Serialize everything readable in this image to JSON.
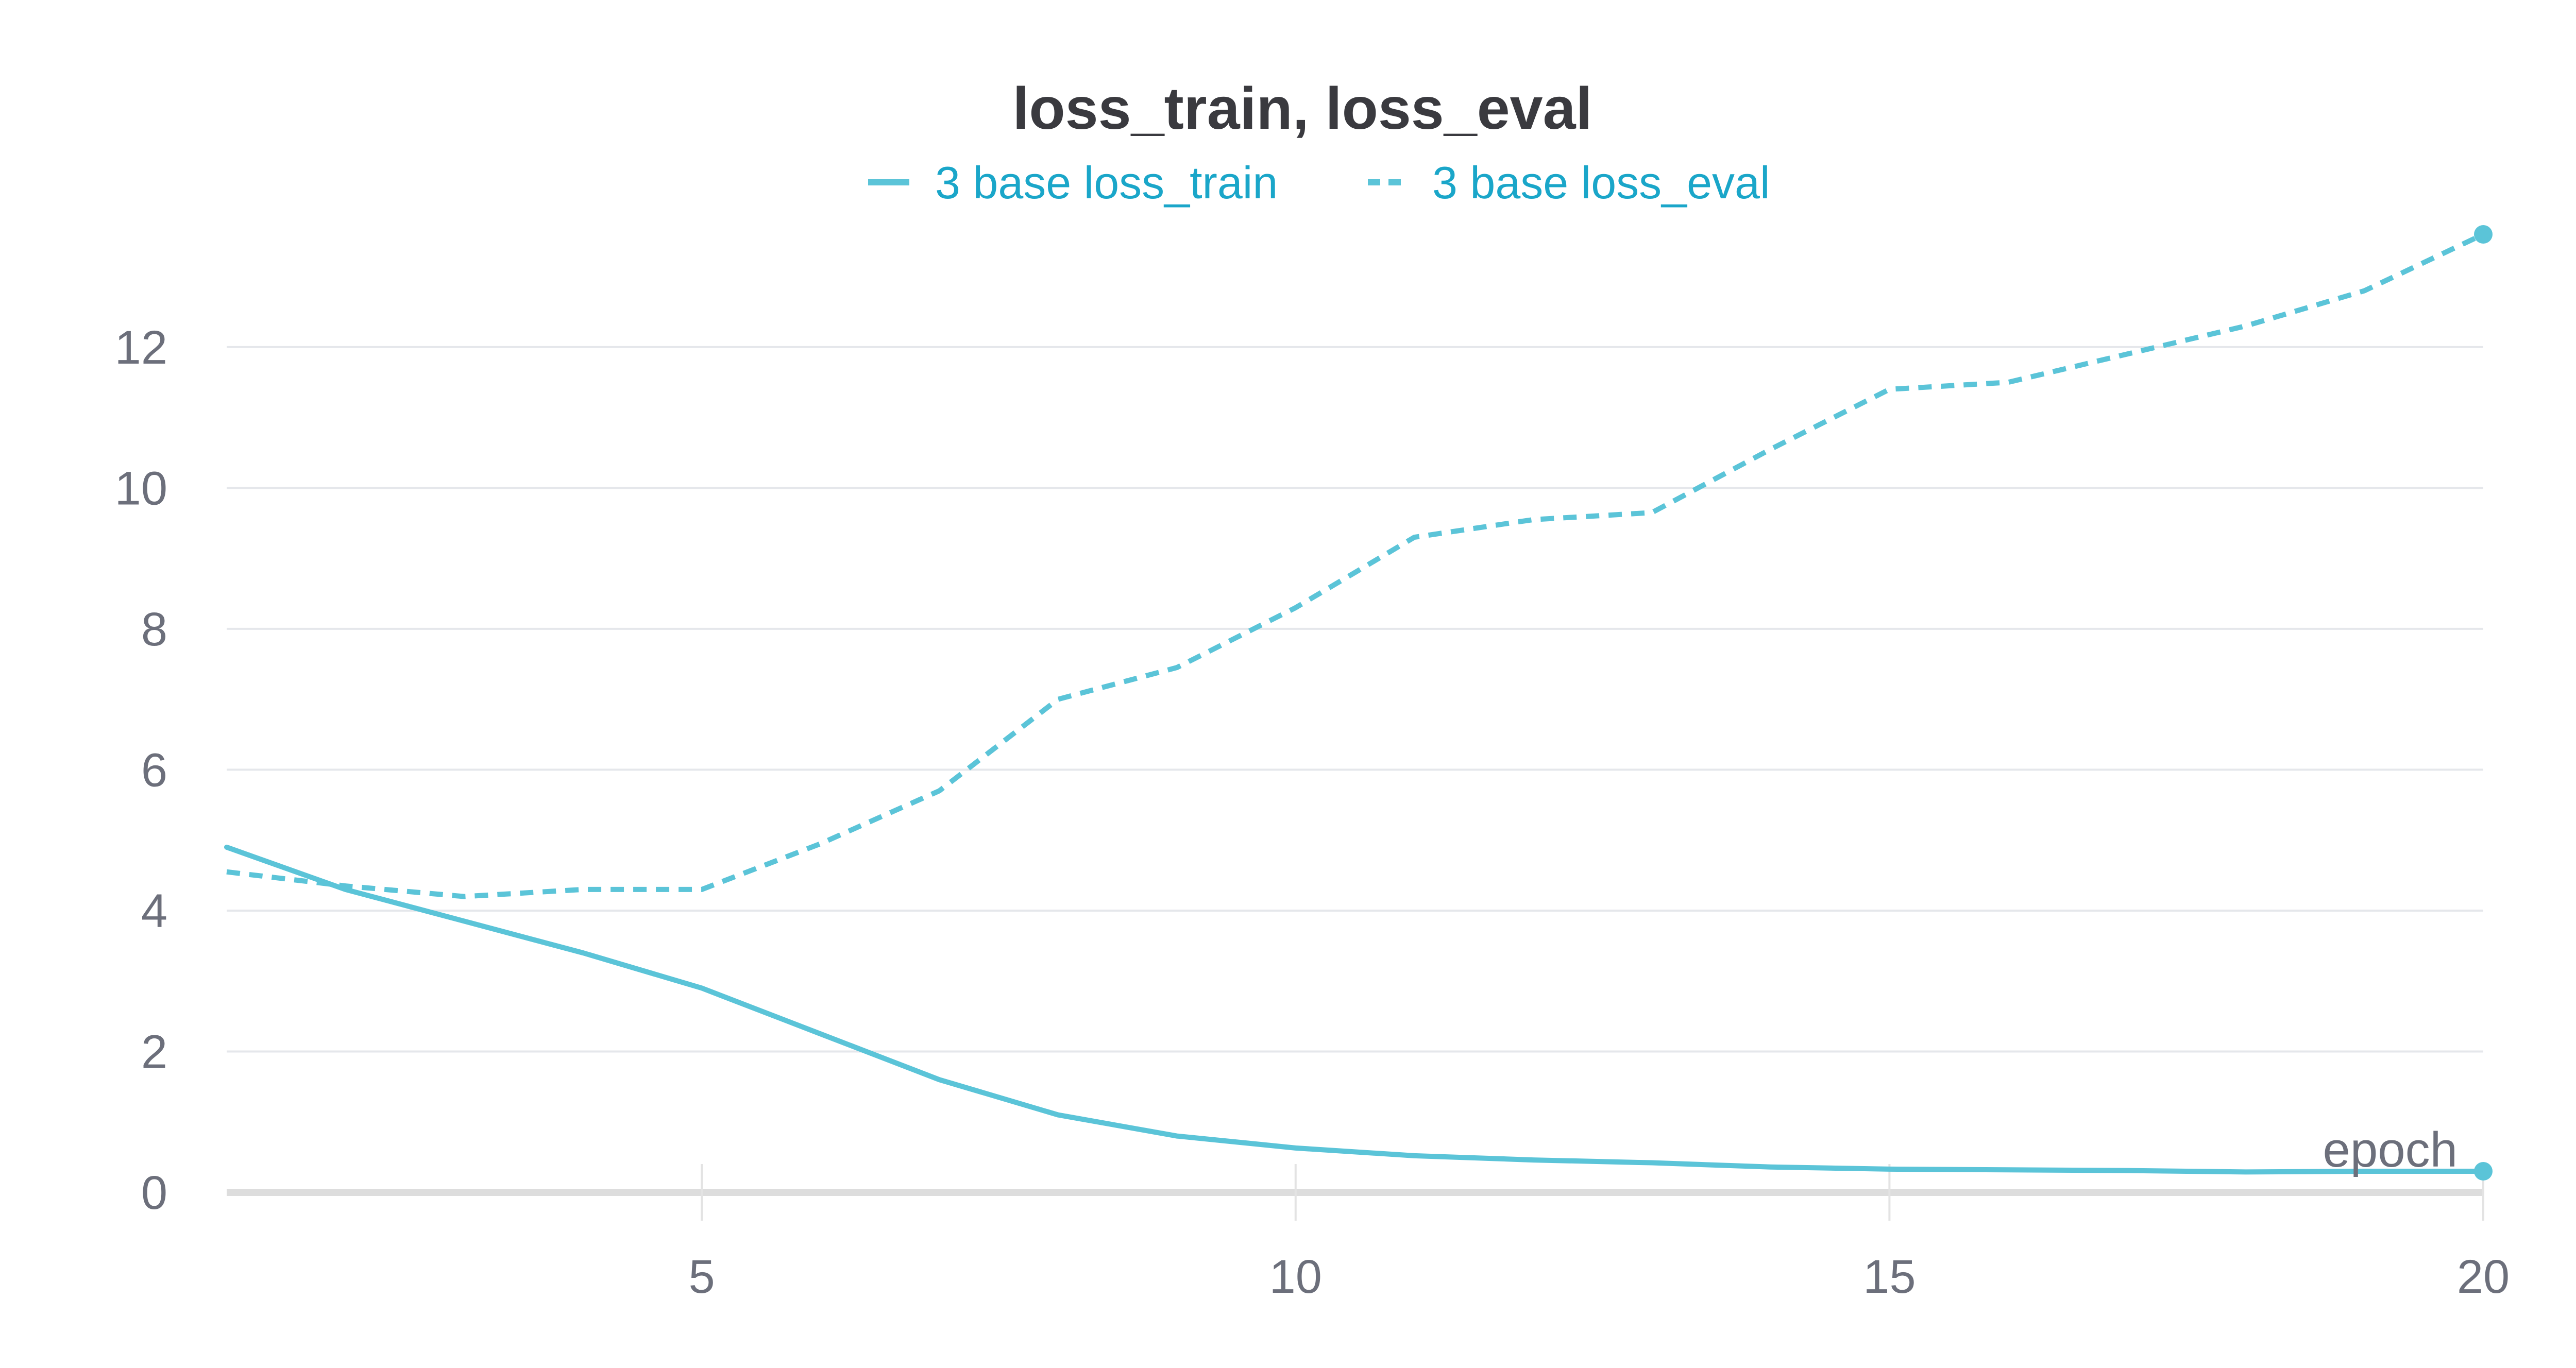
{
  "chart_data": {
    "type": "line",
    "title": "loss_train, loss_eval",
    "xlabel": "epoch",
    "ylabel": "",
    "xlim": [
      1,
      20
    ],
    "ylim": [
      0,
      13.6
    ],
    "x_ticks": [
      5,
      10,
      15,
      20
    ],
    "y_ticks": [
      0,
      2,
      4,
      6,
      8,
      10,
      12
    ],
    "grid": true,
    "legend_position": "top-center",
    "series": [
      {
        "name": "3 base loss_train",
        "style": "solid",
        "color": "#5bc4d8",
        "x": [
          1,
          2,
          3,
          4,
          5,
          6,
          7,
          8,
          9,
          10,
          11,
          12,
          13,
          14,
          15,
          16,
          17,
          18,
          19,
          20
        ],
        "y": [
          4.9,
          4.3,
          3.85,
          3.4,
          2.9,
          2.25,
          1.6,
          1.1,
          0.8,
          0.63,
          0.52,
          0.46,
          0.42,
          0.36,
          0.33,
          0.32,
          0.31,
          0.29,
          0.3,
          0.3
        ]
      },
      {
        "name": "3 base loss_eval",
        "style": "dashed",
        "color": "#5bc4d8",
        "x": [
          1,
          2,
          3,
          4,
          5,
          6,
          7,
          8,
          9,
          10,
          11,
          12,
          13,
          14,
          15,
          16,
          17,
          18,
          19,
          20
        ],
        "y": [
          4.55,
          4.35,
          4.2,
          4.3,
          4.3,
          4.95,
          5.7,
          7.0,
          7.45,
          8.3,
          9.3,
          9.55,
          9.65,
          10.55,
          11.4,
          11.5,
          11.9,
          12.3,
          12.8,
          13.6
        ]
      }
    ]
  }
}
